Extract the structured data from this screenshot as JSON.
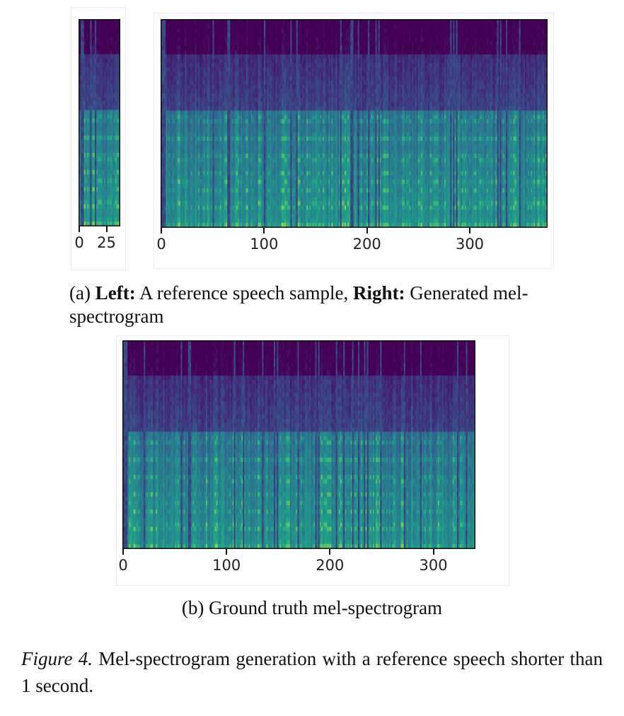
{
  "chart_data": [
    {
      "type": "heatmap",
      "panel": "reference",
      "x_ticks": [
        0,
        25
      ],
      "xlim": [
        0,
        37
      ],
      "colormap": "viridis",
      "frames": 37
    },
    {
      "type": "heatmap",
      "panel": "generated",
      "x_ticks": [
        0,
        100,
        200,
        300
      ],
      "xlim": [
        0,
        375
      ],
      "colormap": "viridis",
      "frames": 375
    },
    {
      "type": "heatmap",
      "panel": "ground-truth",
      "x_ticks": [
        0,
        100,
        200,
        300
      ],
      "xlim": [
        0,
        340
      ],
      "colormap": "viridis",
      "frames": 340
    }
  ],
  "captions": {
    "a_prefix": "(a) ",
    "a_left_bold": "Left:",
    "a_left_text": " A reference speech sample, ",
    "a_right_bold": "Right:",
    "a_right_text": " Generated mel-spectrogram",
    "b": "(b) Ground truth mel-spectrogram",
    "figure_label": "Figure 4.",
    "figure_text": " Mel-spectrogram generation with a reference speech shorter than 1 second."
  }
}
